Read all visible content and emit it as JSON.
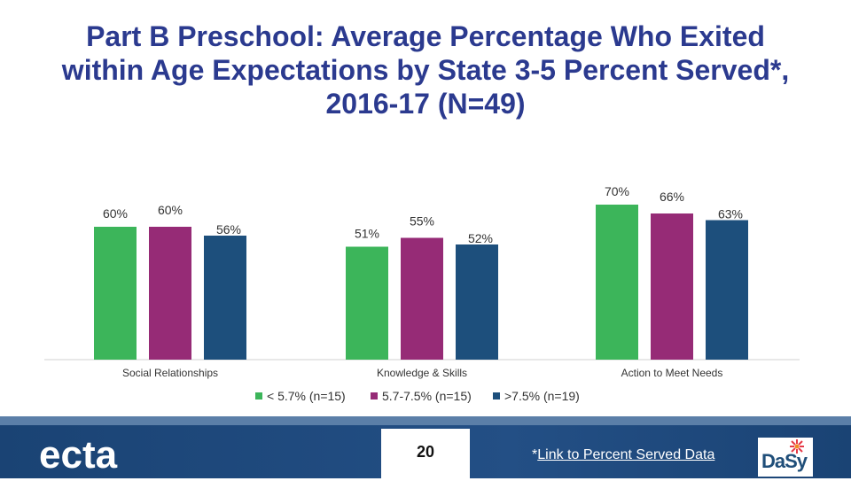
{
  "slide": {
    "title": "Part B Preschool: Average Percentage Who Exited within Age Expectations by State 3-5 Percent Served*, 2016-17 (N=49)",
    "page_number": "20",
    "link_prefix": "*",
    "link_text": "Link to Percent Served Data",
    "brand_logo": "ecta",
    "partner_logo": "DaSy"
  },
  "chart_data": {
    "type": "bar",
    "categories": [
      "Social Relationships",
      "Knowledge & Skills",
      "Action to Meet Needs"
    ],
    "series": [
      {
        "name": "< 5.7% (n=15)",
        "values": [
          60,
          51,
          70
        ],
        "labels": [
          "60%",
          "51%",
          "70%"
        ],
        "color": "#3cb55a"
      },
      {
        "name": "5.7-7.5% (n=15)",
        "values": [
          60,
          55,
          66
        ],
        "labels": [
          "60%",
          "55%",
          "66%"
        ],
        "color": "#962b76"
      },
      {
        "name": ">7.5% (n=19)",
        "values": [
          56,
          52,
          63
        ],
        "labels": [
          "56%",
          "52%",
          "63%"
        ],
        "color": "#1d4f7c"
      }
    ],
    "ylim": [
      0,
      100
    ],
    "grid": false,
    "legend_position": "bottom"
  }
}
